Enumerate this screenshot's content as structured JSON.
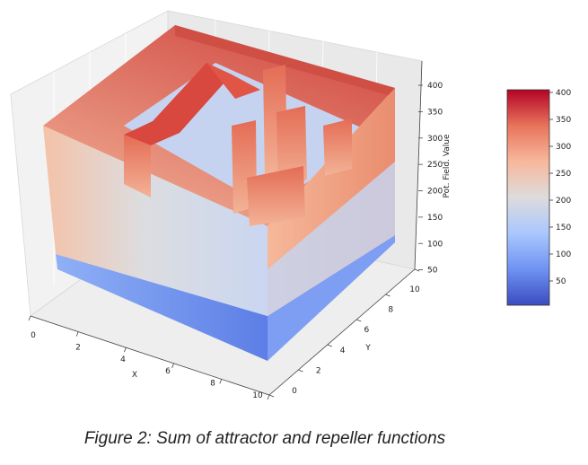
{
  "caption": "Figure 2: Sum of attractor and repeller functions",
  "chart_data": {
    "type": "surface3d",
    "title": "",
    "xlabel": "X",
    "ylabel": "Y",
    "zlabel": "Pot. Field. Value",
    "x_ticks": [
      "0",
      "2",
      "4",
      "6",
      "8",
      "10"
    ],
    "y_ticks": [
      "0",
      "2",
      "4",
      "6",
      "8",
      "10"
    ],
    "z_ticks": [
      "50",
      "100",
      "150",
      "200",
      "250",
      "300",
      "350",
      "400"
    ],
    "xlim": [
      0,
      10
    ],
    "ylim": [
      0,
      10
    ],
    "zlim": [
      0,
      420
    ],
    "colormap": "coolwarm",
    "colorbar": {
      "ticks": [
        "50",
        "100",
        "150",
        "200",
        "250",
        "300",
        "350",
        "400"
      ],
      "range": [
        5,
        405
      ],
      "colors": [
        "#3b4cc0",
        "#6f92f3",
        "#aac7fd",
        "#dddcdc",
        "#f7b89c",
        "#e7745b",
        "#b40426"
      ]
    },
    "surface": {
      "outer_boundary_x0_value": 230,
      "outer_boundary_x10_value": 400,
      "outer_boundary_y0_value": 150,
      "outer_boundary_y10_value": 300,
      "interior_base_value": 40,
      "obstacle_wall_value": 350,
      "obstacle_block_value": 300
    }
  }
}
